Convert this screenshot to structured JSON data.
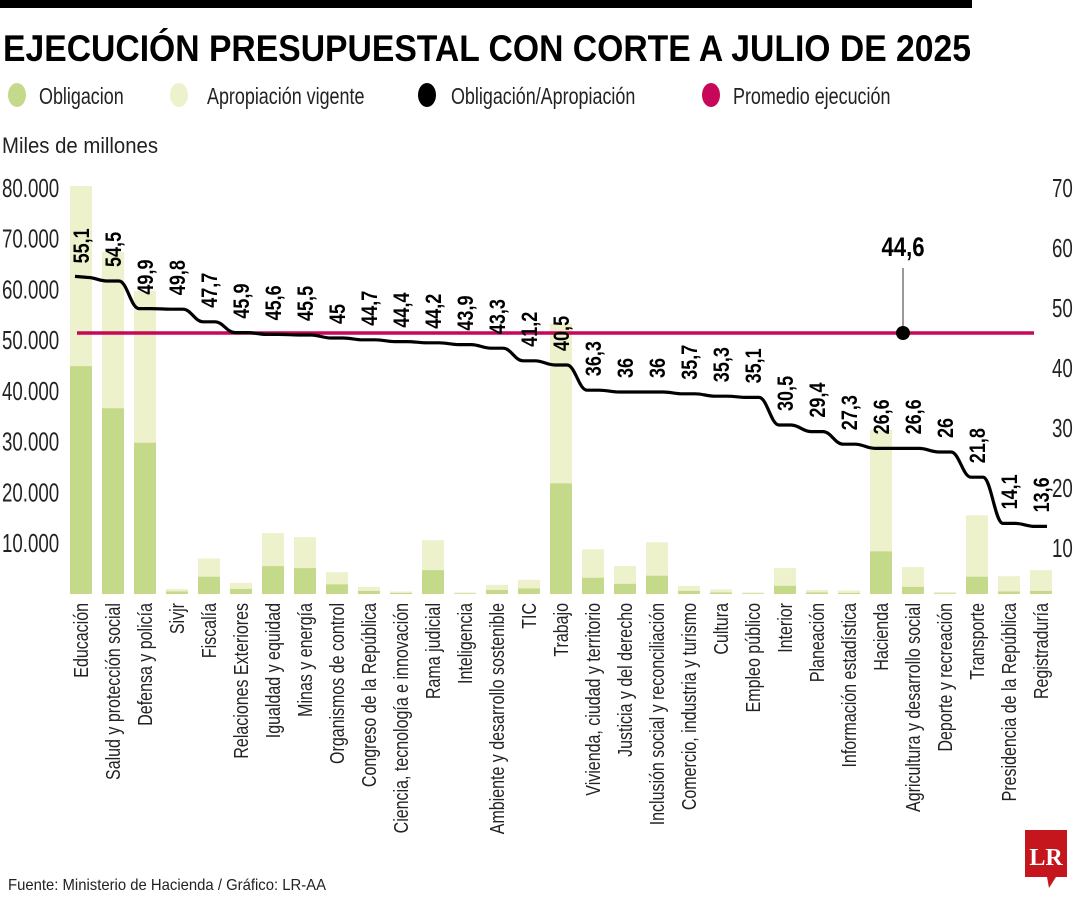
{
  "title": "EJECUCIÓN PRESUPUESTAL CON CORTE A JULIO DE 2025",
  "legend": [
    {
      "label": "Obligacion",
      "color": "#c5d98a"
    },
    {
      "label": "Apropiación vigente",
      "color": "#edf1cc"
    },
    {
      "label": "Obligación/Apropiación",
      "color": "#000000"
    },
    {
      "label": "Promedio ejecución",
      "color": "#c8075a"
    }
  ],
  "units_label": "Miles de millones",
  "source": "Fuente: Ministerio de Hacienda / Gráfico: LR-AA",
  "logo_text": "LR",
  "logo_color": "#c4161c",
  "chart_data": {
    "type": "bar",
    "title": "EJECUCIÓN PRESUPUESTAL CON CORTE A JULIO DE 2025",
    "ylabel": "Miles de millones",
    "ylim": [
      0,
      80000
    ],
    "y_ticks": [
      "10.000",
      "20.000",
      "30.000",
      "40.000",
      "50.000",
      "60.000",
      "70.000",
      "80.000"
    ],
    "y_tick_values": [
      10000,
      20000,
      30000,
      40000,
      50000,
      60000,
      70000,
      80000
    ],
    "y2lim": [
      0,
      70
    ],
    "y2_ticks": [
      "10",
      "20",
      "30",
      "40",
      "50",
      "60",
      "70"
    ],
    "y2_tick_values": [
      10,
      20,
      30,
      40,
      50,
      60,
      70
    ],
    "grid": false,
    "legend_position": "top",
    "categories": [
      "Educación",
      "Salud y protección social",
      "Defensa y policía",
      "Sivjr",
      "Fiscalía",
      "Relaciones Exteriores",
      "Igualdad y equidad",
      "Minas y energía",
      "Organismos de control",
      "Congreso de la República",
      "Ciencia, tecnología e innovación",
      "Rama judicial",
      "Inteligencia",
      "Ambiente y desarrollo sostenible",
      "TIC",
      "Trabajo",
      "Vivienda, ciudad y territorio",
      "Justicia y del derecho",
      "Inclusión social y reconciliación",
      "Comercio, industria y turismo",
      "Cultura",
      "Empleo público",
      "Interior",
      "Planeación",
      "Información estadística",
      "Hacienda",
      "Agricultura y desarrollo social",
      "Deporte y recreación",
      "Transporte",
      "Presidencia de la República",
      "Registraduría"
    ],
    "series": [
      {
        "name": "Apropiación vigente",
        "type": "bar",
        "axis": "left",
        "values": [
          80400,
          67400,
          59700,
          1000,
          7000,
          2200,
          12000,
          11200,
          4300,
          1400,
          500,
          10600,
          300,
          1800,
          2800,
          53300,
          8800,
          5500,
          10200,
          1600,
          900,
          300,
          5100,
          800,
          700,
          32400,
          5300,
          400,
          15500,
          3500,
          4700
        ]
      },
      {
        "name": "Obligacion",
        "type": "bar",
        "axis": "left",
        "values": [
          44900,
          36600,
          29800,
          500,
          3400,
          1000,
          5500,
          5100,
          1900,
          600,
          200,
          4700,
          100,
          800,
          1100,
          21800,
          3200,
          2000,
          3600,
          600,
          300,
          100,
          1600,
          300,
          200,
          8400,
          1400,
          100,
          3400,
          500,
          600
        ]
      },
      {
        "name": "Obligación/Apropiación",
        "type": "line",
        "axis": "right",
        "values": [
          55.1,
          54.5,
          49.9,
          49.8,
          47.7,
          45.9,
          45.6,
          45.5,
          45,
          44.7,
          44.4,
          44.2,
          43.9,
          43.3,
          41.2,
          40.5,
          36.3,
          36,
          36,
          35.7,
          35.3,
          35.1,
          30.5,
          29.4,
          27.3,
          26.6,
          26.6,
          26,
          21.8,
          14.1,
          13.6
        ],
        "labels": [
          "55,1",
          "54,5",
          "49,9",
          "49,8",
          "47,7",
          "45,9",
          "45,6",
          "45,5",
          "45",
          "44,7",
          "44,4",
          "44,2",
          "43,9",
          "43,3",
          "41,2",
          "40,5",
          "36,3",
          "36",
          "36",
          "35,7",
          "35,3",
          "35,1",
          "30,5",
          "29,4",
          "27,3",
          "26,6",
          "26,6",
          "26",
          "21,8",
          "14,1",
          "13,6"
        ]
      }
    ],
    "average": {
      "name": "Promedio ejecución",
      "value": 44.6,
      "label": "44,6"
    }
  }
}
